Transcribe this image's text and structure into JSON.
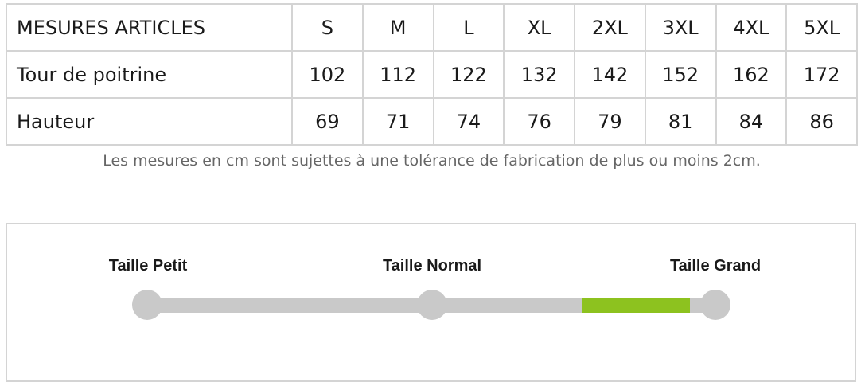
{
  "table": {
    "header": [
      "MESURES ARTICLES",
      "S",
      "M",
      "L",
      "XL",
      "2XL",
      "3XL",
      "4XL",
      "5XL"
    ],
    "rows": [
      [
        "Tour de poitrine",
        "102",
        "112",
        "122",
        "132",
        "142",
        "152",
        "162",
        "172"
      ],
      [
        "Hauteur",
        "69",
        "71",
        "74",
        "76",
        "79",
        "81",
        "84",
        "86"
      ]
    ]
  },
  "caption": "Les mesures en cm sont sujettes à une tolérance de fabrication de plus ou moins 2cm.",
  "size_scale": {
    "labels": [
      "Taille Petit",
      "Taille Normal",
      "Taille Grand"
    ],
    "highlight_range_percent": [
      76.5,
      95.5
    ],
    "highlight_color": "#8dc21f",
    "track_color": "#c9c9c9"
  }
}
